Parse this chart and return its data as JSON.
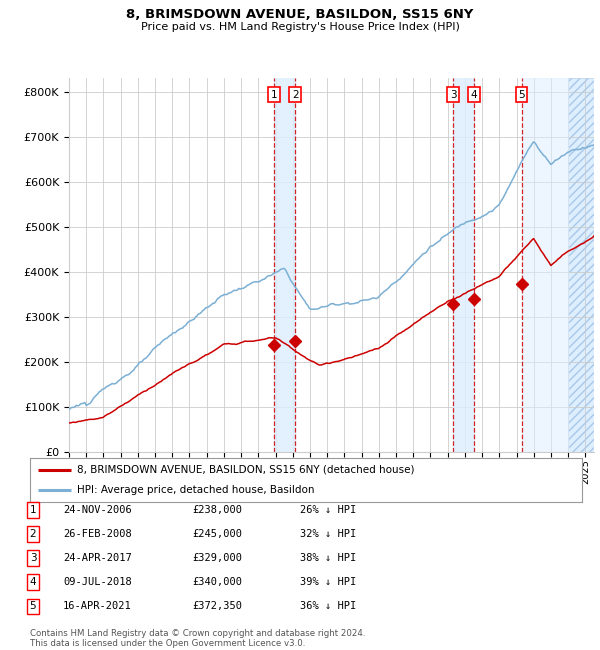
{
  "title_line1": "8, BRIMSDOWN AVENUE, BASILDON, SS15 6NY",
  "title_line2": "Price paid vs. HM Land Registry's House Price Index (HPI)",
  "ylabel_vals": [
    0,
    100000,
    200000,
    300000,
    400000,
    500000,
    600000,
    700000,
    800000
  ],
  "ylabel_labels": [
    "£0",
    "£100K",
    "£200K",
    "£300K",
    "£400K",
    "£500K",
    "£600K",
    "£700K",
    "£800K"
  ],
  "xlim": [
    1995.0,
    2025.5
  ],
  "ylim": [
    0,
    830000
  ],
  "hpi_color": "#7bafd4",
  "price_color": "#cc0000",
  "sale_marker_color": "#cc0000",
  "vline_color": "#cc0000",
  "vspan_color": "#ddeeff",
  "grid_color": "#cccccc",
  "background_color": "#ffffff",
  "hatch_color": "#c8dff0",
  "sale_dates_x": [
    2006.9,
    2008.15,
    2017.31,
    2018.52,
    2021.29
  ],
  "sale_prices_y": [
    238000,
    245000,
    329000,
    340000,
    372350
  ],
  "sale_labels": [
    "1",
    "2",
    "3",
    "4",
    "5"
  ],
  "legend_line1": "8, BRIMSDOWN AVENUE, BASILDON, SS15 6NY (detached house)",
  "legend_line2": "HPI: Average price, detached house, Basildon",
  "table_rows": [
    [
      "1",
      "24-NOV-2006",
      "£238,000",
      "26% ↓ HPI"
    ],
    [
      "2",
      "26-FEB-2008",
      "£245,000",
      "32% ↓ HPI"
    ],
    [
      "3",
      "24-APR-2017",
      "£329,000",
      "38% ↓ HPI"
    ],
    [
      "4",
      "09-JUL-2018",
      "£340,000",
      "39% ↓ HPI"
    ],
    [
      "5",
      "16-APR-2021",
      "£372,350",
      "36% ↓ HPI"
    ]
  ],
  "footnote": "Contains HM Land Registry data © Crown copyright and database right 2024.\nThis data is licensed under the Open Government Licence v3.0."
}
